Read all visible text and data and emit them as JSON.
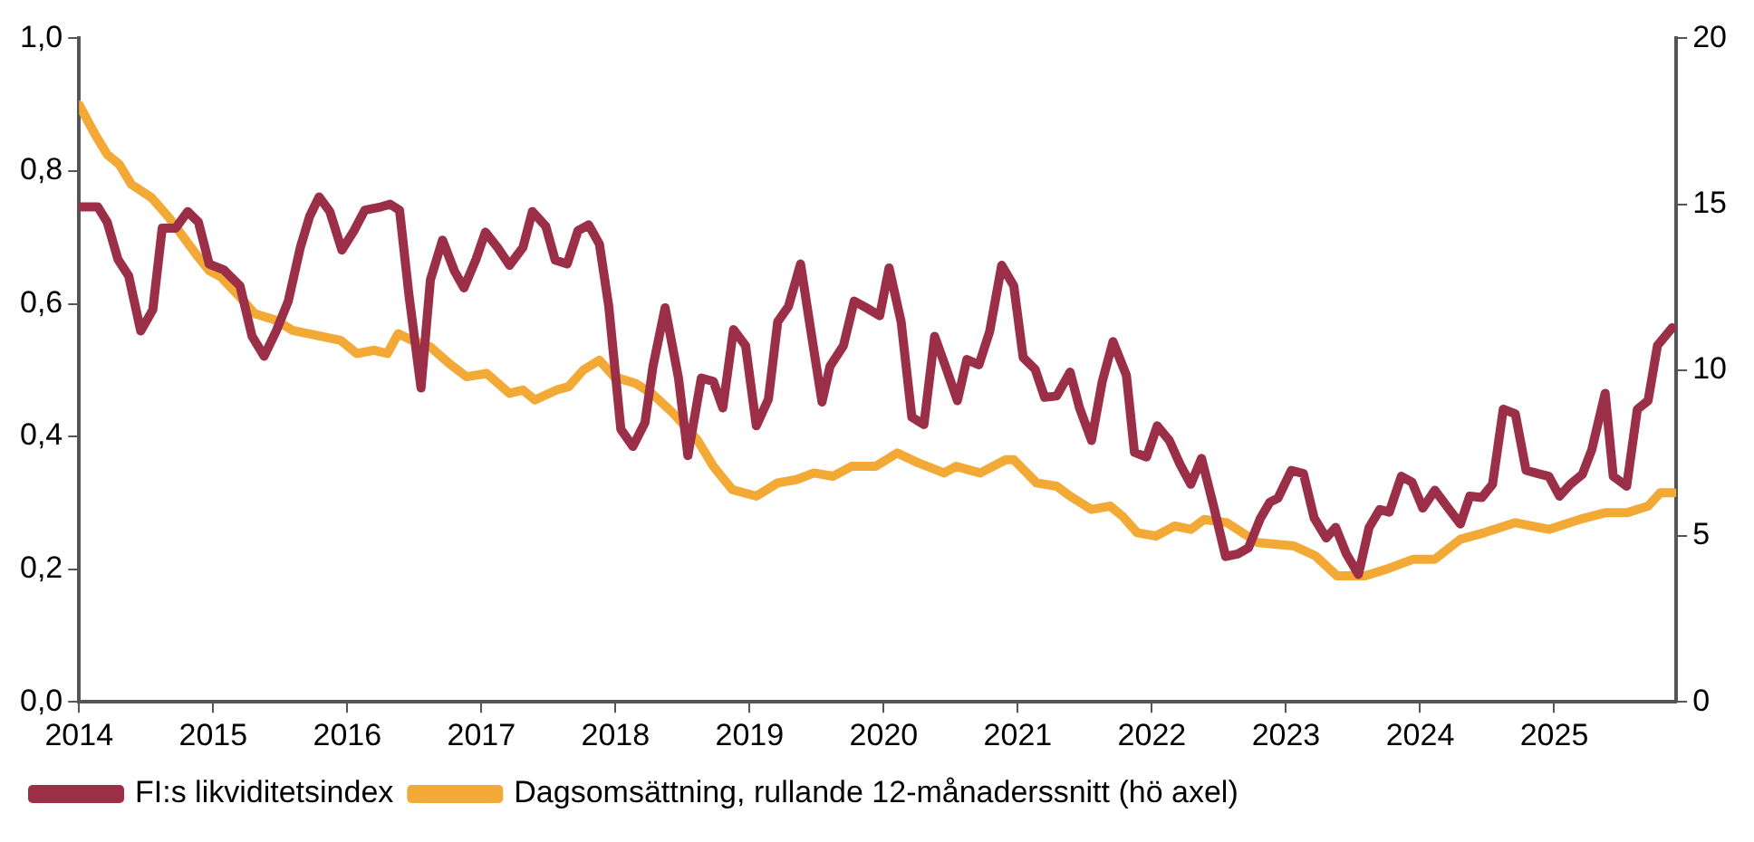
{
  "chart_data": {
    "type": "line",
    "xlim": [
      2014,
      2025.91
    ],
    "xticks": [
      2014,
      2015,
      2016,
      2017,
      2018,
      2019,
      2020,
      2021,
      2022,
      2023,
      2024,
      2025
    ],
    "ylim": [
      0,
      1
    ],
    "yticks": [
      {
        "value": 0,
        "label": "0,0"
      },
      {
        "value": 0.2,
        "label": "0,2"
      },
      {
        "value": 0.4,
        "label": "0,4"
      },
      {
        "value": 0.6,
        "label": "0,6"
      },
      {
        "value": 0.8,
        "label": "0,8"
      },
      {
        "value": 1,
        "label": "1,0"
      }
    ],
    "y2lim": [
      0,
      20
    ],
    "y2ticks": [
      0,
      5,
      10,
      15,
      20
    ],
    "grid": false,
    "legend": "bottom",
    "marker": "none",
    "line_style": "solid",
    "series": [
      {
        "name": "FI:s likviditetsindex",
        "color": "#9b2f47",
        "x": [
          2014.0,
          2014.14,
          2014.21,
          2014.29,
          2014.37,
          2014.46,
          2014.55,
          2014.62,
          2014.72,
          2014.81,
          2014.89,
          2014.97,
          2015.08,
          2015.2,
          2015.29,
          2015.38,
          2015.47,
          2015.56,
          2015.65,
          2015.72,
          2015.79,
          2015.87,
          2015.96,
          2016.05,
          2016.13,
          2016.25,
          2016.32,
          2016.39,
          2016.46,
          2016.55,
          2016.62,
          2016.71,
          2016.8,
          2016.87,
          2016.96,
          2017.03,
          2017.12,
          2017.21,
          2017.31,
          2017.38,
          2017.48,
          2017.55,
          2017.64,
          2017.72,
          2017.8,
          2017.88,
          2017.95,
          2018.04,
          2018.13,
          2018.22,
          2018.28,
          2018.37,
          2018.47,
          2018.54,
          2018.64,
          2018.73,
          2018.8,
          2018.88,
          2018.97,
          2019.05,
          2019.14,
          2019.21,
          2019.29,
          2019.38,
          2019.46,
          2019.54,
          2019.6,
          2019.7,
          2019.78,
          2019.87,
          2019.97,
          2020.04,
          2020.13,
          2020.21,
          2020.3,
          2020.38,
          2020.46,
          2020.55,
          2020.62,
          2020.71,
          2020.79,
          2020.88,
          2020.97,
          2021.04,
          2021.13,
          2021.2,
          2021.29,
          2021.39,
          2021.46,
          2021.55,
          2021.63,
          2021.71,
          2021.81,
          2021.87,
          2021.96,
          2022.04,
          2022.13,
          2022.21,
          2022.29,
          2022.37,
          2022.46,
          2022.55,
          2022.64,
          2022.72,
          2022.81,
          2022.88,
          2022.94,
          2023.04,
          2023.13,
          2023.21,
          2023.3,
          2023.37,
          2023.45,
          2023.54,
          2023.62,
          2023.7,
          2023.77,
          2023.86,
          2023.94,
          2024.02,
          2024.11,
          2024.21,
          2024.3,
          2024.37,
          2024.46,
          2024.54,
          2024.62,
          2024.71,
          2024.79,
          2024.88,
          2024.96,
          2025.04,
          2025.12,
          2025.21,
          2025.28,
          2025.38,
          2025.44,
          2025.54,
          2025.62,
          2025.7,
          2025.77,
          2025.88
        ],
        "values": [
          0.746,
          0.746,
          0.723,
          0.667,
          0.642,
          0.559,
          0.591,
          0.714,
          0.714,
          0.739,
          0.723,
          0.66,
          0.651,
          0.627,
          0.551,
          0.521,
          0.559,
          0.604,
          0.685,
          0.732,
          0.761,
          0.739,
          0.681,
          0.71,
          0.741,
          0.746,
          0.75,
          0.741,
          0.613,
          0.473,
          0.636,
          0.696,
          0.649,
          0.624,
          0.667,
          0.708,
          0.685,
          0.658,
          0.685,
          0.739,
          0.717,
          0.666,
          0.66,
          0.71,
          0.719,
          0.69,
          0.596,
          0.411,
          0.385,
          0.421,
          0.506,
          0.594,
          0.488,
          0.371,
          0.488,
          0.483,
          0.443,
          0.561,
          0.537,
          0.416,
          0.456,
          0.573,
          0.596,
          0.66,
          0.555,
          0.452,
          0.506,
          0.537,
          0.604,
          0.594,
          0.582,
          0.654,
          0.573,
          0.429,
          0.418,
          0.551,
          0.506,
          0.454,
          0.516,
          0.508,
          0.558,
          0.658,
          0.627,
          0.519,
          0.501,
          0.459,
          0.461,
          0.497,
          0.443,
          0.394,
          0.483,
          0.543,
          0.492,
          0.376,
          0.369,
          0.416,
          0.394,
          0.358,
          0.328,
          0.367,
          0.295,
          0.219,
          0.223,
          0.232,
          0.277,
          0.301,
          0.307,
          0.349,
          0.344,
          0.277,
          0.247,
          0.263,
          0.223,
          0.192,
          0.263,
          0.29,
          0.286,
          0.34,
          0.331,
          0.292,
          0.319,
          0.292,
          0.268,
          0.31,
          0.308,
          0.328,
          0.441,
          0.434,
          0.349,
          0.344,
          0.34,
          0.31,
          0.328,
          0.343,
          0.38,
          0.465,
          0.34,
          0.325,
          0.441,
          0.454,
          0.537,
          0.564
        ]
      },
      {
        "name": "Dagsomsättning, rullande 12-månaderssnitt (hö axel)",
        "color": "#f3a935",
        "axis": "y2",
        "x": [
          2014.0,
          2014.12,
          2014.21,
          2014.3,
          2014.39,
          2014.54,
          2014.67,
          2014.78,
          2014.89,
          2014.97,
          2015.06,
          2015.2,
          2015.31,
          2015.47,
          2015.59,
          2015.77,
          2015.95,
          2016.07,
          2016.2,
          2016.3,
          2016.38,
          2016.48,
          2016.62,
          2016.76,
          2016.89,
          2017.04,
          2017.21,
          2017.31,
          2017.4,
          2017.56,
          2017.65,
          2017.76,
          2017.88,
          2017.99,
          2018.15,
          2018.27,
          2018.43,
          2018.61,
          2018.73,
          2018.87,
          2019.05,
          2019.21,
          2019.35,
          2019.48,
          2019.62,
          2019.76,
          2019.94,
          2020.1,
          2020.26,
          2020.45,
          2020.54,
          2020.72,
          2020.91,
          2020.97,
          2021.14,
          2021.29,
          2021.39,
          2021.55,
          2021.69,
          2021.78,
          2021.89,
          2022.03,
          2022.17,
          2022.29,
          2022.39,
          2022.56,
          2022.79,
          2023.06,
          2023.22,
          2023.38,
          2023.59,
          2023.75,
          2023.95,
          2024.11,
          2024.3,
          2024.48,
          2024.71,
          2024.96,
          2025.19,
          2025.38,
          2025.54,
          2025.7,
          2025.79,
          2025.89
        ],
        "values": [
          18.0,
          17.1,
          16.5,
          16.2,
          15.6,
          15.2,
          14.6,
          14.0,
          13.4,
          13.0,
          12.8,
          12.2,
          11.7,
          11.5,
          11.2,
          11.05,
          10.9,
          10.5,
          10.6,
          10.5,
          11.1,
          10.9,
          10.7,
          10.2,
          9.8,
          9.9,
          9.3,
          9.4,
          9.1,
          9.4,
          9.5,
          10.0,
          10.3,
          9.8,
          9.6,
          9.3,
          8.7,
          7.9,
          7.1,
          6.4,
          6.2,
          6.6,
          6.7,
          6.9,
          6.8,
          7.1,
          7.1,
          7.5,
          7.2,
          6.9,
          7.1,
          6.9,
          7.3,
          7.3,
          6.6,
          6.5,
          6.2,
          5.8,
          5.9,
          5.6,
          5.1,
          5.0,
          5.3,
          5.2,
          5.5,
          5.4,
          4.8,
          4.7,
          4.4,
          3.8,
          3.8,
          4.0,
          4.3,
          4.3,
          4.9,
          5.1,
          5.4,
          5.2,
          5.5,
          5.7,
          5.7,
          5.9,
          6.3,
          6.3
        ]
      }
    ]
  }
}
